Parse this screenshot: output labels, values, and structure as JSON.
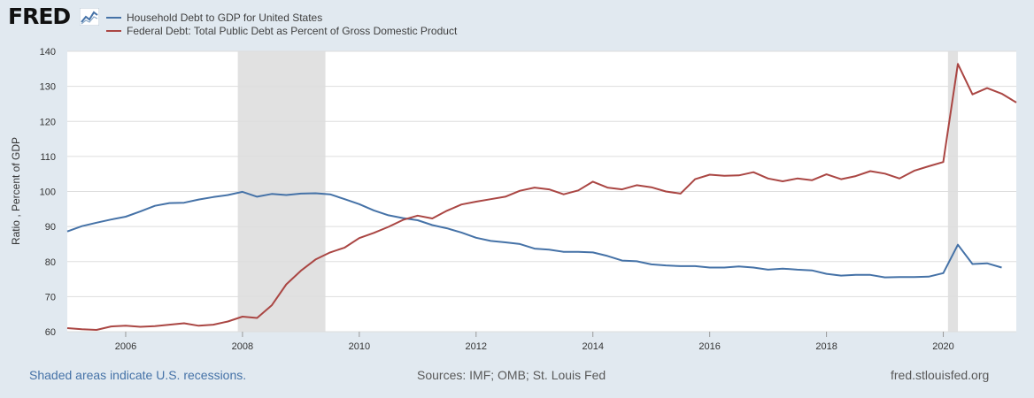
{
  "header": {
    "logo_text": "FRED"
  },
  "footer": {
    "recession_note": "Shaded areas indicate U.S. recessions.",
    "sources": "Sources: IMF; OMB; St. Louis Fed",
    "site": "fred.stlouisfed.org"
  },
  "colors": {
    "household": "#4572a7",
    "federal": "#aa4643",
    "recession": "#e1e1e1",
    "grid": "#dddddd"
  },
  "chart_data": {
    "type": "line",
    "ylabel": "Ratio , Percent of GDP",
    "ylim": [
      60,
      140
    ],
    "y_ticks": [
      60,
      70,
      80,
      90,
      100,
      110,
      120,
      130,
      140
    ],
    "xlim": [
      2005.0,
      2021.25
    ],
    "x_ticks": [
      "2006",
      "2008",
      "2010",
      "2012",
      "2014",
      "2016",
      "2018",
      "2020"
    ],
    "grid": true,
    "legend_position": "top-left",
    "recessions": [
      [
        2007.92,
        2009.42
      ],
      [
        2020.08,
        2020.25
      ]
    ],
    "series": [
      {
        "name": "Household Debt to GDP for United States",
        "color": "#4572a7",
        "x": [
          2005.0,
          2005.25,
          2005.5,
          2005.75,
          2006.0,
          2006.25,
          2006.5,
          2006.75,
          2007.0,
          2007.25,
          2007.5,
          2007.75,
          2008.0,
          2008.25,
          2008.5,
          2008.75,
          2009.0,
          2009.25,
          2009.5,
          2009.75,
          2010.0,
          2010.25,
          2010.5,
          2010.75,
          2011.0,
          2011.25,
          2011.5,
          2011.75,
          2012.0,
          2012.25,
          2012.5,
          2012.75,
          2013.0,
          2013.25,
          2013.5,
          2013.75,
          2014.0,
          2014.25,
          2014.5,
          2014.75,
          2015.0,
          2015.25,
          2015.5,
          2015.75,
          2016.0,
          2016.25,
          2016.5,
          2016.75,
          2017.0,
          2017.25,
          2017.5,
          2017.75,
          2018.0,
          2018.25,
          2018.5,
          2018.75,
          2019.0,
          2019.25,
          2019.5,
          2019.75,
          2020.0,
          2020.25,
          2020.5,
          2020.75,
          2021.0
        ],
        "y": [
          88.6,
          90.1,
          91.1,
          92.0,
          92.8,
          94.3,
          95.9,
          96.7,
          96.8,
          97.7,
          98.4,
          99.0,
          99.9,
          98.5,
          99.3,
          99.0,
          99.4,
          99.5,
          99.2,
          97.8,
          96.4,
          94.6,
          93.2,
          92.4,
          91.8,
          90.4,
          89.5,
          88.3,
          86.8,
          85.9,
          85.5,
          85.0,
          83.7,
          83.4,
          82.8,
          82.8,
          82.6,
          81.6,
          80.3,
          80.1,
          79.2,
          78.9,
          78.7,
          78.7,
          78.3,
          78.3,
          78.6,
          78.3,
          77.7,
          78.0,
          77.7,
          77.5,
          76.5,
          76.0,
          76.2,
          76.2,
          75.5,
          75.6,
          75.6,
          75.7,
          76.7,
          84.8,
          79.3,
          79.5,
          78.3
        ]
      },
      {
        "name": "Federal Debt: Total Public Debt as Percent of Gross Domestic Product",
        "color": "#aa4643",
        "x": [
          2005.0,
          2005.25,
          2005.5,
          2005.75,
          2006.0,
          2006.25,
          2006.5,
          2006.75,
          2007.0,
          2007.25,
          2007.5,
          2007.75,
          2008.0,
          2008.25,
          2008.5,
          2008.75,
          2009.0,
          2009.25,
          2009.5,
          2009.75,
          2010.0,
          2010.25,
          2010.5,
          2010.75,
          2011.0,
          2011.25,
          2011.5,
          2011.75,
          2012.0,
          2012.25,
          2012.5,
          2012.75,
          2013.0,
          2013.25,
          2013.5,
          2013.75,
          2014.0,
          2014.25,
          2014.5,
          2014.75,
          2015.0,
          2015.25,
          2015.5,
          2015.75,
          2016.0,
          2016.25,
          2016.5,
          2016.75,
          2017.0,
          2017.25,
          2017.5,
          2017.75,
          2018.0,
          2018.25,
          2018.5,
          2018.75,
          2019.0,
          2019.25,
          2019.5,
          2019.75,
          2020.0,
          2020.25,
          2020.5,
          2020.75,
          2021.0,
          2021.25
        ],
        "y": [
          61.0,
          60.7,
          60.5,
          61.5,
          61.7,
          61.4,
          61.6,
          62.0,
          62.4,
          61.7,
          62.0,
          62.9,
          64.3,
          63.9,
          67.5,
          73.5,
          77.4,
          80.6,
          82.6,
          84.0,
          86.7,
          88.2,
          89.9,
          91.9,
          93.1,
          92.3,
          94.5,
          96.3,
          97.1,
          97.8,
          98.5,
          100.2,
          101.1,
          100.6,
          99.2,
          100.3,
          102.8,
          101.1,
          100.6,
          101.8,
          101.2,
          100.0,
          99.4,
          103.5,
          104.8,
          104.5,
          104.6,
          105.5,
          103.7,
          102.9,
          103.7,
          103.2,
          104.9,
          103.5,
          104.4,
          105.8,
          105.1,
          103.7,
          105.9,
          107.2,
          108.4,
          136.4,
          127.7,
          129.5,
          127.9,
          125.4
        ]
      }
    ]
  }
}
